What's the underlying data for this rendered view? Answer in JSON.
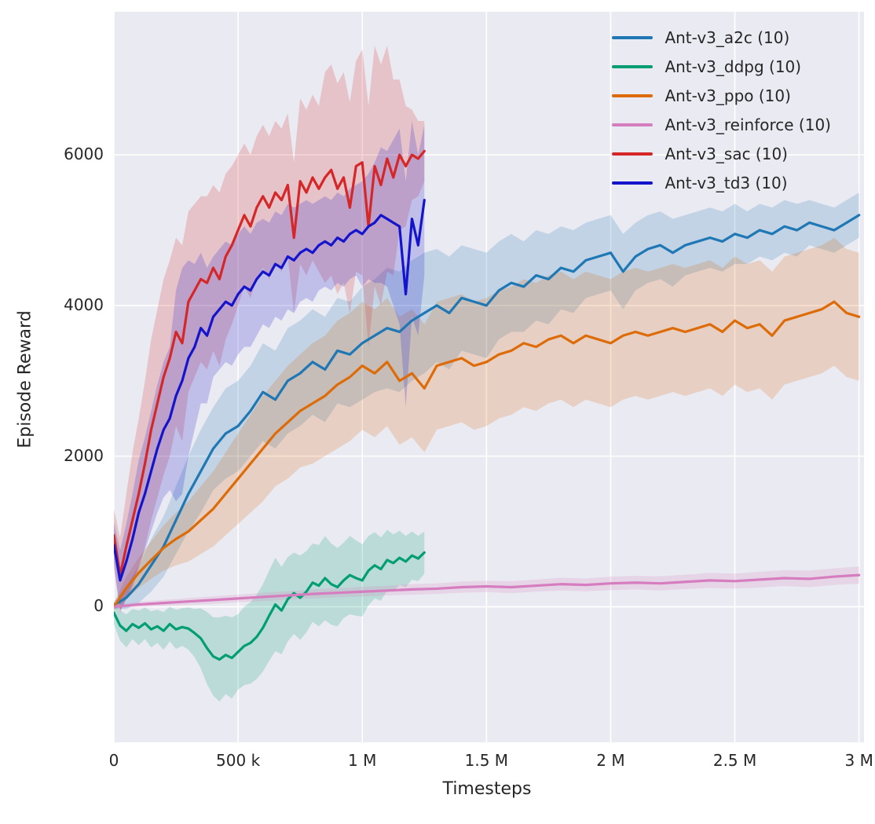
{
  "figure": {
    "background": "#ffffff",
    "plot_background": "#eaeaf2",
    "grid_color": "#ffffff",
    "text_color": "#262626"
  },
  "chart_data": {
    "type": "line",
    "title": "",
    "xlabel": "Timesteps",
    "ylabel": "Episode Reward",
    "x_unit": "timesteps (values stored in thousands)",
    "xlim_k": [
      0,
      3020
    ],
    "ylim": [
      -1800,
      7900
    ],
    "grid": true,
    "legend_position": "top-right",
    "x_ticks": [
      {
        "v": 0,
        "label": "0"
      },
      {
        "v": 500,
        "label": "500 k"
      },
      {
        "v": 1000,
        "label": "1 M"
      },
      {
        "v": 1500,
        "label": "1.5 M"
      },
      {
        "v": 2000,
        "label": "2 M"
      },
      {
        "v": 2500,
        "label": "2.5 M"
      },
      {
        "v": 3000,
        "label": "3 M"
      }
    ],
    "y_ticks": [
      {
        "v": 0,
        "label": "0"
      },
      {
        "v": 2000,
        "label": "2000"
      },
      {
        "v": 4000,
        "label": "4000"
      },
      {
        "v": 6000,
        "label": "6000"
      }
    ],
    "series": [
      {
        "name": "Ant-v3_a2c (10)",
        "color": "#1f77b4",
        "x": [
          0,
          50,
          100,
          150,
          200,
          250,
          300,
          350,
          400,
          450,
          500,
          550,
          600,
          650,
          700,
          750,
          800,
          850,
          900,
          950,
          1000,
          1050,
          1100,
          1150,
          1200,
          1250,
          1300,
          1350,
          1400,
          1450,
          1500,
          1550,
          1600,
          1650,
          1700,
          1750,
          1800,
          1850,
          1900,
          1950,
          2000,
          2050,
          2100,
          2150,
          2200,
          2250,
          2300,
          2350,
          2400,
          2450,
          2500,
          2550,
          2600,
          2650,
          2700,
          2750,
          2800,
          2850,
          2900,
          2950,
          3000
        ],
        "y": [
          20,
          120,
          300,
          550,
          800,
          1150,
          1500,
          1800,
          2100,
          2300,
          2400,
          2600,
          2850,
          2750,
          3000,
          3100,
          3250,
          3150,
          3400,
          3350,
          3500,
          3600,
          3700,
          3650,
          3800,
          3900,
          4000,
          3900,
          4100,
          4050,
          4000,
          4200,
          4300,
          4250,
          4400,
          4350,
          4500,
          4450,
          4600,
          4650,
          4700,
          4450,
          4650,
          4750,
          4800,
          4700,
          4800,
          4850,
          4900,
          4850,
          4950,
          4900,
          5000,
          4950,
          5050,
          5000,
          5100,
          5050,
          5000,
          5100,
          5200
        ],
        "spread": [
          50,
          150,
          250,
          350,
          400,
          450,
          500,
          550,
          550,
          600,
          600,
          600,
          650,
          650,
          700,
          700,
          700,
          700,
          700,
          700,
          750,
          750,
          800,
          800,
          800,
          800,
          750,
          750,
          700,
          700,
          700,
          650,
          650,
          600,
          600,
          600,
          550,
          550,
          500,
          500,
          500,
          500,
          450,
          450,
          450,
          450,
          400,
          400,
          400,
          400,
          400,
          350,
          350,
          350,
          350,
          350,
          300,
          300,
          300,
          300,
          300
        ]
      },
      {
        "name": "Ant-v3_ddpg (10)",
        "color": "#029e73",
        "x": [
          0,
          25,
          50,
          75,
          100,
          125,
          150,
          175,
          200,
          225,
          250,
          275,
          300,
          325,
          350,
          375,
          400,
          425,
          450,
          475,
          500,
          525,
          550,
          575,
          600,
          625,
          650,
          675,
          700,
          725,
          750,
          775,
          800,
          825,
          850,
          875,
          900,
          925,
          950,
          975,
          1000,
          1025,
          1050,
          1075,
          1100,
          1125,
          1150,
          1175,
          1200,
          1225,
          1250
        ],
        "y": [
          -80,
          -250,
          -320,
          -230,
          -280,
          -220,
          -300,
          -260,
          -320,
          -230,
          -300,
          -270,
          -290,
          -350,
          -420,
          -550,
          -660,
          -700,
          -640,
          -680,
          -600,
          -520,
          -480,
          -400,
          -280,
          -120,
          30,
          -50,
          100,
          180,
          120,
          200,
          320,
          280,
          380,
          300,
          260,
          350,
          420,
          380,
          350,
          480,
          550,
          500,
          620,
          580,
          650,
          600,
          680,
          640,
          720
        ],
        "spread": [
          150,
          200,
          220,
          200,
          230,
          210,
          240,
          220,
          250,
          230,
          260,
          250,
          280,
          320,
          400,
          480,
          520,
          560,
          520,
          540,
          500,
          520,
          540,
          560,
          580,
          600,
          620,
          580,
          560,
          540,
          560,
          540,
          520,
          540,
          560,
          540,
          520,
          500,
          520,
          500,
          480,
          460,
          440,
          420,
          400,
          380,
          360,
          340,
          320,
          300,
          280
        ]
      },
      {
        "name": "Ant-v3_ppo (10)",
        "color": "#dd6b08",
        "x": [
          0,
          50,
          100,
          150,
          200,
          250,
          300,
          350,
          400,
          450,
          500,
          550,
          600,
          650,
          700,
          750,
          800,
          850,
          900,
          950,
          1000,
          1050,
          1100,
          1150,
          1200,
          1250,
          1300,
          1350,
          1400,
          1450,
          1500,
          1550,
          1600,
          1650,
          1700,
          1750,
          1800,
          1850,
          1900,
          1950,
          2000,
          2050,
          2100,
          2150,
          2200,
          2250,
          2300,
          2350,
          2400,
          2450,
          2500,
          2550,
          2600,
          2650,
          2700,
          2750,
          2800,
          2850,
          2900,
          2950,
          3000
        ],
        "y": [
          0,
          250,
          450,
          620,
          780,
          900,
          1000,
          1150,
          1300,
          1500,
          1700,
          1900,
          2100,
          2300,
          2450,
          2600,
          2700,
          2800,
          2950,
          3050,
          3200,
          3100,
          3250,
          3000,
          3100,
          2900,
          3200,
          3250,
          3300,
          3200,
          3250,
          3350,
          3400,
          3500,
          3450,
          3550,
          3600,
          3500,
          3600,
          3550,
          3500,
          3600,
          3650,
          3600,
          3650,
          3700,
          3650,
          3700,
          3750,
          3650,
          3800,
          3700,
          3750,
          3600,
          3800,
          3850,
          3900,
          3950,
          4050,
          3900,
          3850
        ],
        "spread": [
          50,
          150,
          200,
          250,
          300,
          350,
          400,
          450,
          500,
          550,
          600,
          650,
          700,
          700,
          750,
          750,
          800,
          800,
          850,
          850,
          850,
          850,
          850,
          850,
          850,
          850,
          850,
          850,
          850,
          850,
          850,
          850,
          850,
          850,
          850,
          850,
          850,
          850,
          850,
          850,
          850,
          850,
          850,
          850,
          850,
          850,
          850,
          850,
          850,
          850,
          850,
          850,
          850,
          850,
          850,
          850,
          850,
          850,
          850,
          850,
          850
        ]
      },
      {
        "name": "Ant-v3_reinforce (10)",
        "color": "#d57dbe",
        "x": [
          0,
          100,
          200,
          300,
          400,
          500,
          600,
          700,
          800,
          900,
          1000,
          1100,
          1200,
          1300,
          1400,
          1500,
          1600,
          1700,
          1800,
          1900,
          2000,
          2100,
          2200,
          2300,
          2400,
          2500,
          2600,
          2700,
          2800,
          2900,
          3000
        ],
        "y": [
          0,
          30,
          50,
          70,
          90,
          110,
          130,
          150,
          170,
          185,
          200,
          215,
          230,
          240,
          260,
          270,
          260,
          280,
          300,
          290,
          310,
          320,
          310,
          330,
          350,
          340,
          360,
          380,
          370,
          400,
          420
        ],
        "spread": [
          25,
          35,
          40,
          45,
          50,
          50,
          55,
          55,
          60,
          60,
          65,
          65,
          70,
          70,
          75,
          75,
          80,
          80,
          85,
          85,
          90,
          90,
          95,
          95,
          100,
          100,
          105,
          105,
          110,
          110,
          115
        ]
      },
      {
        "name": "Ant-v3_sac (10)",
        "color": "#d62728",
        "x": [
          0,
          25,
          50,
          75,
          100,
          125,
          150,
          175,
          200,
          225,
          250,
          275,
          300,
          325,
          350,
          375,
          400,
          425,
          450,
          475,
          500,
          525,
          550,
          575,
          600,
          625,
          650,
          675,
          700,
          725,
          750,
          775,
          800,
          825,
          850,
          875,
          900,
          925,
          950,
          975,
          1000,
          1025,
          1050,
          1075,
          1100,
          1125,
          1150,
          1175,
          1200,
          1225,
          1250
        ],
        "y": [
          950,
          420,
          800,
          1150,
          1500,
          1900,
          2350,
          2700,
          3050,
          3300,
          3650,
          3500,
          4050,
          4200,
          4350,
          4300,
          4500,
          4350,
          4650,
          4800,
          5000,
          5200,
          5050,
          5300,
          5450,
          5300,
          5500,
          5400,
          5600,
          4900,
          5650,
          5500,
          5700,
          5550,
          5700,
          5800,
          5550,
          5700,
          5300,
          5850,
          5900,
          5050,
          5850,
          5600,
          5950,
          5700,
          6000,
          5850,
          6000,
          5950,
          6050
        ],
        "spread": [
          350,
          500,
          700,
          900,
          1000,
          1100,
          1200,
          1250,
          1300,
          1300,
          1250,
          1300,
          1200,
          1150,
          1100,
          1150,
          1100,
          1150,
          1100,
          1050,
          1000,
          950,
          950,
          950,
          950,
          950,
          950,
          950,
          950,
          1000,
          1100,
          1100,
          1100,
          1100,
          1400,
          1400,
          1400,
          1400,
          1400,
          1400,
          1500,
          1600,
          1600,
          1600,
          1500,
          1300,
          1000,
          800,
          600,
          500,
          400
        ]
      },
      {
        "name": "Ant-v3_td3 (10)",
        "color": "#1414cc",
        "x": [
          0,
          25,
          50,
          75,
          100,
          125,
          150,
          175,
          200,
          225,
          250,
          275,
          300,
          325,
          350,
          375,
          400,
          425,
          450,
          475,
          500,
          525,
          550,
          575,
          600,
          625,
          650,
          675,
          700,
          725,
          750,
          775,
          800,
          825,
          850,
          875,
          900,
          925,
          950,
          975,
          1000,
          1025,
          1050,
          1075,
          1100,
          1125,
          1150,
          1175,
          1200,
          1225,
          1250
        ],
        "y": [
          820,
          350,
          600,
          900,
          1250,
          1500,
          1800,
          2100,
          2350,
          2500,
          2800,
          3000,
          3300,
          3450,
          3700,
          3600,
          3850,
          3950,
          4050,
          4000,
          4150,
          4250,
          4200,
          4350,
          4450,
          4400,
          4550,
          4500,
          4650,
          4600,
          4700,
          4750,
          4700,
          4800,
          4850,
          4800,
          4900,
          4850,
          4950,
          5000,
          4950,
          5050,
          5100,
          5200,
          5150,
          5100,
          5050,
          4150,
          5150,
          4800,
          5400
        ],
        "spread": [
          300,
          400,
          500,
          600,
          700,
          750,
          800,
          850,
          900,
          950,
          1400,
          1500,
          1300,
          1100,
          1000,
          900,
          800,
          800,
          800,
          800,
          800,
          800,
          750,
          750,
          700,
          700,
          700,
          700,
          700,
          700,
          650,
          650,
          650,
          600,
          600,
          600,
          600,
          600,
          600,
          600,
          700,
          700,
          800,
          900,
          900,
          1100,
          1300,
          1500,
          1300,
          1200,
          1000
        ]
      }
    ]
  }
}
